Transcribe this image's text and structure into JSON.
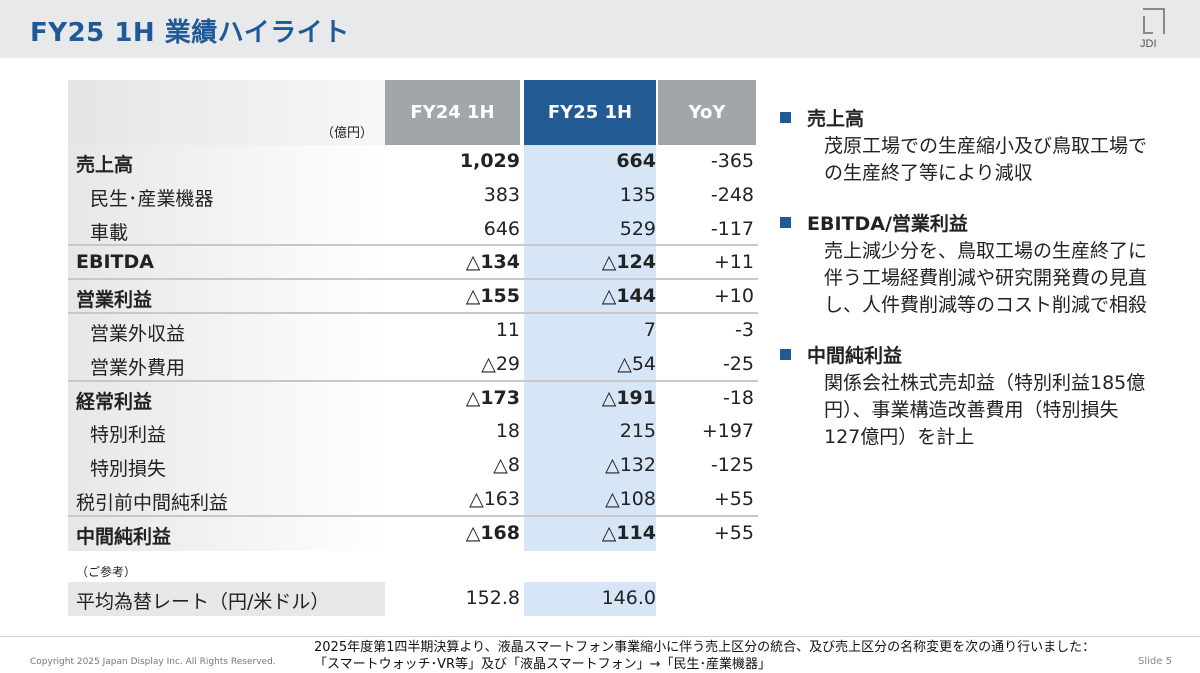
{
  "header": {
    "title": "FY25 1H 業績ハイライト",
    "logo_text": "JDI"
  },
  "table": {
    "unit": "（億円）",
    "columns": [
      "FY24 1H",
      "FY25 1H",
      "YoY"
    ],
    "colors": {
      "header_gray": "#a2a6a9",
      "header_blue": "#225a94",
      "highlight": "#d6e6f6"
    },
    "rows": [
      {
        "label": "売上高",
        "fy24": "1,029",
        "fy25": "664",
        "yoy": "-365"
      },
      {
        "label": "民生･産業機器",
        "fy24": "383",
        "fy25": "135",
        "yoy": "-248"
      },
      {
        "label": "車載",
        "fy24": "646",
        "fy25": "529",
        "yoy": "-117"
      },
      {
        "label": "EBITDA",
        "fy24": "△134",
        "fy25": "△124",
        "yoy": "+11"
      },
      {
        "label": "営業利益",
        "fy24": "△155",
        "fy25": "△144",
        "yoy": "+10"
      },
      {
        "label": "営業外収益",
        "fy24": "11",
        "fy25": "7",
        "yoy": "-3"
      },
      {
        "label": "営業外費用",
        "fy24": "△29",
        "fy25": "△54",
        "yoy": "-25"
      },
      {
        "label": "経常利益",
        "fy24": "△173",
        "fy25": "△191",
        "yoy": "-18"
      },
      {
        "label": "特別利益",
        "fy24": "18",
        "fy25": "215",
        "yoy": "+197"
      },
      {
        "label": "特別損失",
        "fy24": "△8",
        "fy25": "△132",
        "yoy": "-125"
      },
      {
        "label": "税引前中間純利益",
        "fy24": "△163",
        "fy25": "△108",
        "yoy": "+55"
      },
      {
        "label": "中間純利益",
        "fy24": "△168",
        "fy25": "△114",
        "yoy": "+55"
      }
    ],
    "reference_label": "（ご参考）",
    "rate": {
      "label": "平均為替レート（円/米ドル）",
      "fy24": "152.8",
      "fy25": "146.0"
    }
  },
  "highlights": [
    {
      "title": "売上高",
      "body": "茂原工場での生産縮小及び鳥取工場での生産終了等により減収"
    },
    {
      "title": "EBITDA/営業利益",
      "body": "売上減少分を、鳥取工場の生産終了に伴う工場経費削減や研究開発費の見直し、人件費削減等のコスト削減で相殺"
    },
    {
      "title": "中間純利益",
      "body": "関係会社株式売却益（特別利益185億円）、事業構造改善費用（特別損失127億円）を計上"
    }
  ],
  "footer": {
    "copyright": "Copyright 2025 Japan Display Inc. All Rights Reserved.",
    "note_line1": "2025年度第1四半期決算より、液晶スマートフォン事業縮小に伴う売上区分の統合、及び売上区分の名称変更を次の通り行いました：",
    "note_line2": "「スマートウォッチ･VR等」及び「液晶スマートフォン」→「民生･産業機器」",
    "slide": "Slide 5"
  }
}
